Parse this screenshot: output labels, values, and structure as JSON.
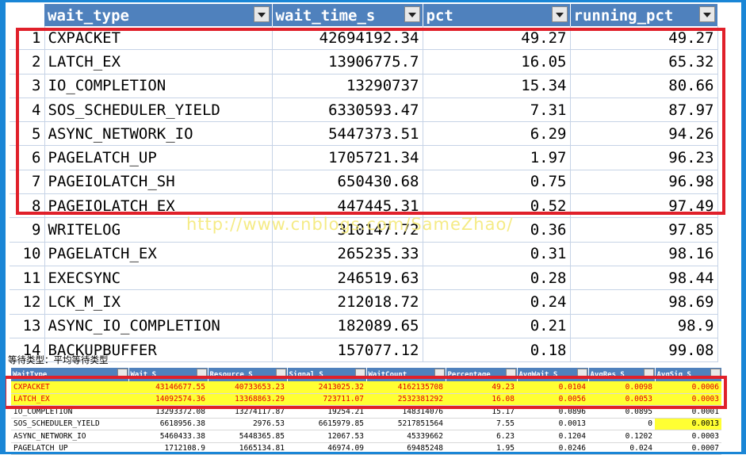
{
  "top_table": {
    "headers": [
      "wait_type",
      "wait_time_s",
      "pct",
      "running_pct"
    ],
    "rows": [
      {
        "idx": "1",
        "wait_type": "CXPACKET",
        "wait_time_s": "42694192.34",
        "pct": "49.27",
        "running_pct": "49.27"
      },
      {
        "idx": "2",
        "wait_type": "LATCH_EX",
        "wait_time_s": "13906775.7",
        "pct": "16.05",
        "running_pct": "65.32"
      },
      {
        "idx": "3",
        "wait_type": "IO_COMPLETION",
        "wait_time_s": "13290737",
        "pct": "15.34",
        "running_pct": "80.66"
      },
      {
        "idx": "4",
        "wait_type": "SOS_SCHEDULER_YIELD",
        "wait_time_s": "6330593.47",
        "pct": "7.31",
        "running_pct": "87.97"
      },
      {
        "idx": "5",
        "wait_type": "ASYNC_NETWORK_IO",
        "wait_time_s": "5447373.51",
        "pct": "6.29",
        "running_pct": "94.26"
      },
      {
        "idx": "6",
        "wait_type": "PAGELATCH_UP",
        "wait_time_s": "1705721.34",
        "pct": "1.97",
        "running_pct": "96.23"
      },
      {
        "idx": "7",
        "wait_type": "PAGEIOLATCH_SH",
        "wait_time_s": "650430.68",
        "pct": "0.75",
        "running_pct": "96.98"
      },
      {
        "idx": "8",
        "wait_type": "PAGEIOLATCH_EX",
        "wait_time_s": "447445.31",
        "pct": "0.52",
        "running_pct": "97.49"
      },
      {
        "idx": "9",
        "wait_type": "WRITELOG",
        "wait_time_s": "310147.72",
        "pct": "0.36",
        "running_pct": "97.85"
      },
      {
        "idx": "10",
        "wait_type": "PAGELATCH_EX",
        "wait_time_s": "265235.33",
        "pct": "0.31",
        "running_pct": "98.16"
      },
      {
        "idx": "11",
        "wait_type": "EXECSYNC",
        "wait_time_s": "246519.63",
        "pct": "0.28",
        "running_pct": "98.44"
      },
      {
        "idx": "12",
        "wait_type": "LCK_M_IX",
        "wait_time_s": "212018.72",
        "pct": "0.24",
        "running_pct": "98.69"
      },
      {
        "idx": "13",
        "wait_type": "ASYNC_IO_COMPLETION",
        "wait_time_s": "182089.65",
        "pct": "0.21",
        "running_pct": "98.9"
      },
      {
        "idx": "14",
        "wait_type": "BACKUPBUFFER",
        "wait_time_s": "157077.12",
        "pct": "0.18",
        "running_pct": "99.08"
      }
    ]
  },
  "watermark": "http://www.cnblogs.com/SameZhao/",
  "caption": "等待类型：平均等待类型",
  "bottom_table": {
    "headers": [
      "WaitType",
      "Wait_S",
      "Resource_S",
      "Signal_S",
      "WaitCount",
      "Percentage",
      "AvgWait_S",
      "AvgRes_S",
      "AvgSig_S"
    ],
    "rows": [
      {
        "c": [
          "CXPACKET",
          "43146677.55",
          "40733653.23",
          "2413025.32",
          "4162135708",
          "49.23",
          "0.0104",
          "0.0098",
          "0.0006"
        ],
        "hl": true
      },
      {
        "c": [
          "LATCH_EX",
          "14092574.36",
          "13368863.29",
          "723711.07",
          "2532381292",
          "16.08",
          "0.0056",
          "0.0053",
          "0.0003"
        ],
        "hl": true
      },
      {
        "c": [
          "IO_COMPLETION",
          "13293372.08",
          "13274117.87",
          "19254.21",
          "148314076",
          "15.17",
          "0.0896",
          "0.0895",
          "0.0001"
        ],
        "hl": false
      },
      {
        "c": [
          "SOS_SCHEDULER_YIELD",
          "6618956.38",
          "2976.53",
          "6615979.85",
          "5217851564",
          "7.55",
          "0.0013",
          "0",
          "0.0013"
        ],
        "hl": false,
        "cellhl": 8
      },
      {
        "c": [
          "ASYNC_NETWORK_IO",
          "5460433.38",
          "5448365.85",
          "12067.53",
          "45339662",
          "6.23",
          "0.1204",
          "0.1202",
          "0.0003"
        ],
        "hl": false
      },
      {
        "c": [
          "PAGELATCH_UP",
          "1712108.9",
          "1665134.81",
          "46974.09",
          "69485248",
          "1.95",
          "0.0246",
          "0.024",
          "0.0007"
        ],
        "hl": false
      }
    ]
  },
  "colors": {
    "header_bg": "#4f81bd",
    "frame": "#1a86d6",
    "highlight_box": "#e0202a",
    "row_highlight": "#ffff33",
    "row_highlight_text": "#e00000",
    "watermark": "#f4e97a"
  }
}
